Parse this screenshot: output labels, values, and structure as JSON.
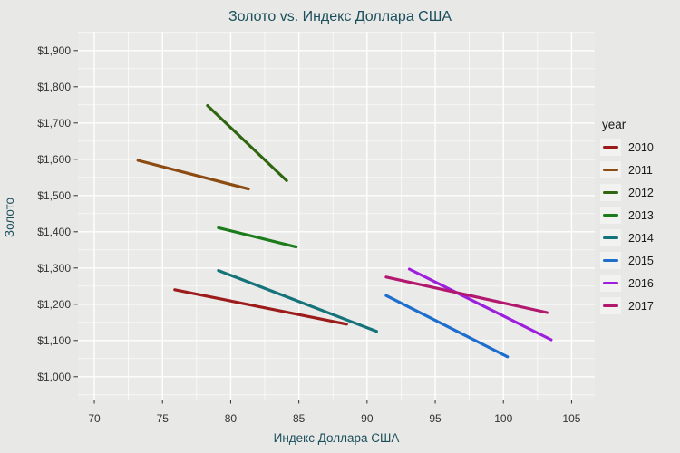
{
  "figure": {
    "background": "#E8E8E6",
    "panel_background": "#EAEAE8",
    "gridline_color": "#FFFFFF",
    "title_color": "#1B4F5C",
    "tick_label_color": "#333333",
    "legend_key_background": "#F2F2F0"
  },
  "chart_data": {
    "type": "line",
    "title": "Золото vs. Индекс Доллара США",
    "xlabel": "Индекс Доллара США",
    "ylabel": "Золото",
    "legend_title": "year",
    "legend_position": "right",
    "grid": "white major and minor gridlines on gray panel (ggplot style)",
    "x_ticks": [
      70,
      75,
      80,
      85,
      90,
      95,
      100,
      105
    ],
    "y_ticks": [
      1000,
      1100,
      1200,
      1300,
      1400,
      1500,
      1600,
      1700,
      1800,
      1900
    ],
    "y_tick_labels": [
      "$1,000",
      "$1,100",
      "$1,200",
      "$1,300",
      "$1,400",
      "$1,500",
      "$1,600",
      "$1,700",
      "$1,800",
      "$1,900"
    ],
    "xlim": [
      68.8,
      106.7
    ],
    "ylim": [
      937,
      1952
    ],
    "series": [
      {
        "name": "2010",
        "color": "#9C1B1B",
        "x": [
          75.9,
          88.5
        ],
        "y": [
          1240,
          1145
        ]
      },
      {
        "name": "2011",
        "color": "#8C4B11",
        "x": [
          73.2,
          81.3
        ],
        "y": [
          1597,
          1518
        ]
      },
      {
        "name": "2012",
        "color": "#2F660F",
        "x": [
          78.3,
          84.1
        ],
        "y": [
          1748,
          1541
        ]
      },
      {
        "name": "2013",
        "color": "#1C7C1C",
        "x": [
          79.1,
          84.8
        ],
        "y": [
          1411,
          1358
        ]
      },
      {
        "name": "2014",
        "color": "#15737A",
        "x": [
          79.1,
          90.7
        ],
        "y": [
          1293,
          1125
        ]
      },
      {
        "name": "2015",
        "color": "#1E6ECD",
        "x": [
          91.4,
          100.3
        ],
        "y": [
          1224,
          1055
        ]
      },
      {
        "name": "2016",
        "color": "#9D1EDC",
        "x": [
          93.1,
          103.5
        ],
        "y": [
          1297,
          1102
        ]
      },
      {
        "name": "2017",
        "color": "#B3186F",
        "x": [
          91.4,
          103.2
        ],
        "y": [
          1275,
          1177
        ]
      }
    ]
  }
}
